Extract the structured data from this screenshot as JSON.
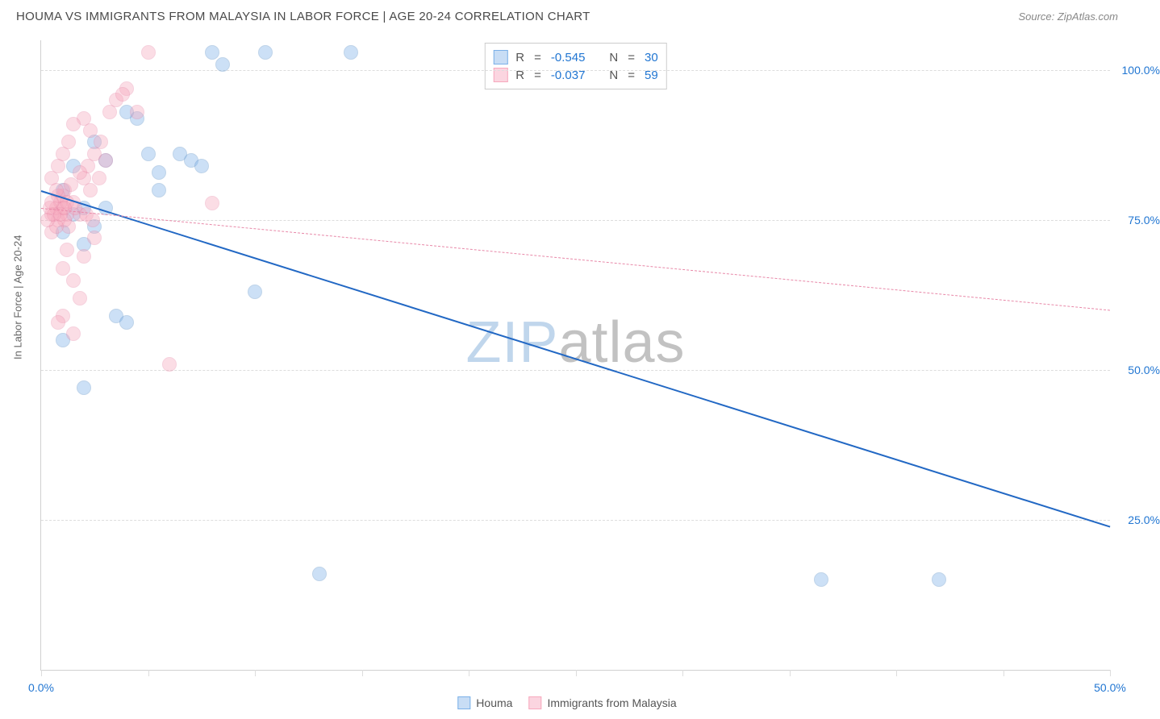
{
  "header": {
    "title": "HOUMA VS IMMIGRANTS FROM MALAYSIA IN LABOR FORCE | AGE 20-24 CORRELATION CHART",
    "source": "Source: ZipAtlas.com"
  },
  "chart": {
    "type": "scatter",
    "ylabel": "In Labor Force | Age 20-24",
    "xlim": [
      0,
      50
    ],
    "ylim": [
      0,
      105
    ],
    "xticks": [
      0,
      5,
      10,
      15,
      20,
      25,
      30,
      35,
      40,
      45,
      50
    ],
    "yticks": [
      25,
      50,
      75,
      100
    ],
    "xtick_labels": {
      "0": "0.0%",
      "50": "50.0%"
    },
    "ytick_labels": {
      "25": "25.0%",
      "50": "50.0%",
      "75": "75.0%",
      "100": "100.0%"
    },
    "grid_color": "#dddddd",
    "axis_color": "#d0d0d0",
    "tick_label_color_x": "#2176d2",
    "tick_label_color_y": "#2176d2",
    "point_radius": 9,
    "point_opacity": 0.38,
    "series": [
      {
        "name": "Houma",
        "color_fill": "#7ab0e8",
        "color_stroke": "#5a8fc8",
        "line_solid": true,
        "line_color": "#2268c4",
        "line_width": 2.2,
        "regression": {
          "x1": 0,
          "y1": 80,
          "x2": 50,
          "y2": 24
        },
        "R": "-0.545",
        "N": "30",
        "points": [
          [
            8.0,
            103
          ],
          [
            10.5,
            103
          ],
          [
            14.5,
            103
          ],
          [
            13.0,
            16
          ],
          [
            2.0,
            71
          ],
          [
            2.5,
            74
          ],
          [
            3.0,
            77
          ],
          [
            2.0,
            77
          ],
          [
            1.0,
            73
          ],
          [
            1.5,
            76
          ],
          [
            4.5,
            92
          ],
          [
            5.5,
            83
          ],
          [
            5.0,
            86
          ],
          [
            6.5,
            86
          ],
          [
            7.0,
            85
          ],
          [
            7.5,
            84
          ],
          [
            3.5,
            59
          ],
          [
            4.0,
            58
          ],
          [
            2.0,
            47
          ],
          [
            1.0,
            55
          ],
          [
            8.5,
            101
          ],
          [
            10.0,
            63
          ],
          [
            1.0,
            80
          ],
          [
            36.5,
            15
          ],
          [
            42.0,
            15
          ],
          [
            1.5,
            84
          ],
          [
            2.5,
            88
          ],
          [
            5.5,
            80
          ],
          [
            4.0,
            93
          ],
          [
            3.0,
            85
          ]
        ]
      },
      {
        "name": "Immigrants from Malaysia",
        "color_fill": "#f7a8bd",
        "color_stroke": "#e888a8",
        "line_solid": false,
        "line_color": "#e888a8",
        "line_width": 1.4,
        "regression": {
          "x1": 0,
          "y1": 77,
          "x2": 50,
          "y2": 60
        },
        "R": "-0.037",
        "N": "59",
        "points": [
          [
            1.0,
            77
          ],
          [
            1.2,
            76
          ],
          [
            0.8,
            75
          ],
          [
            1.5,
            78
          ],
          [
            1.0,
            79
          ],
          [
            0.5,
            76
          ],
          [
            1.3,
            74
          ],
          [
            0.7,
            77
          ],
          [
            1.8,
            76
          ],
          [
            1.1,
            75
          ],
          [
            2.0,
            82
          ],
          [
            2.2,
            84
          ],
          [
            1.8,
            83
          ],
          [
            2.5,
            86
          ],
          [
            2.8,
            88
          ],
          [
            3.0,
            85
          ],
          [
            2.3,
            80
          ],
          [
            2.7,
            82
          ],
          [
            3.2,
            93
          ],
          [
            3.5,
            95
          ],
          [
            4.0,
            97
          ],
          [
            3.8,
            96
          ],
          [
            4.5,
            93
          ],
          [
            5.0,
            103
          ],
          [
            1.5,
            65
          ],
          [
            1.0,
            67
          ],
          [
            2.0,
            69
          ],
          [
            1.8,
            62
          ],
          [
            2.5,
            72
          ],
          [
            1.2,
            70
          ],
          [
            0.5,
            82
          ],
          [
            0.8,
            84
          ],
          [
            1.0,
            86
          ],
          [
            1.3,
            88
          ],
          [
            2.0,
            92
          ],
          [
            2.3,
            90
          ],
          [
            1.5,
            91
          ],
          [
            1.0,
            59
          ],
          [
            1.5,
            56
          ],
          [
            0.8,
            58
          ],
          [
            6.0,
            51
          ],
          [
            8.0,
            77.8
          ],
          [
            0.5,
            73
          ],
          [
            0.7,
            74
          ],
          [
            0.9,
            78
          ],
          [
            1.1,
            80
          ],
          [
            1.4,
            81
          ],
          [
            0.6,
            76
          ],
          [
            0.4,
            77
          ],
          [
            0.8,
            79
          ],
          [
            1.2,
            78
          ],
          [
            1.6,
            77
          ],
          [
            2.1,
            76
          ],
          [
            2.4,
            75
          ],
          [
            0.3,
            75
          ],
          [
            0.5,
            78
          ],
          [
            0.7,
            80
          ],
          [
            0.9,
            76
          ],
          [
            1.1,
            77
          ]
        ]
      }
    ],
    "stats_box": {
      "rows": [
        {
          "swatch_fill": "#c8ddf5",
          "swatch_stroke": "#7ab0e8",
          "R": "-0.545",
          "N": "30"
        },
        {
          "swatch_fill": "#fbd5e0",
          "swatch_stroke": "#f7a8bd",
          "R": "-0.037",
          "N": "59"
        }
      ]
    },
    "legend": [
      {
        "swatch_fill": "#c8ddf5",
        "swatch_stroke": "#7ab0e8",
        "label": "Houma"
      },
      {
        "swatch_fill": "#fbd5e0",
        "swatch_stroke": "#f7a8bd",
        "label": "Immigrants from Malaysia"
      }
    ],
    "watermark": {
      "prefix": "ZIP",
      "suffix": "atlas"
    }
  }
}
